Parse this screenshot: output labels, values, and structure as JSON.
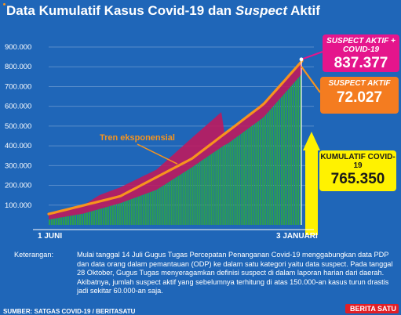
{
  "title": {
    "part1": "Data Kumulatif Kasus Covid-19 dan ",
    "italic": "Suspect",
    "part2": " Aktif"
  },
  "callouts": {
    "combined": {
      "label": "SUSPECT AKTIF + COVID-19",
      "value": "837.377"
    },
    "suspect": {
      "label": "SUSPECT AKTIF",
      "value": "72.027"
    },
    "cumulative": {
      "label": "KUMULATIF COVID-19",
      "value": "765.350"
    }
  },
  "notes": {
    "key": "Keterangan:",
    "text": "Mulai tanggal 14 Juli Gugus Tugas Percepatan Penanganan Covid-19 menggabungkan data PDP dan data orang dalam pemantauan (ODP) ke dalam satu kategori yaitu data suspect. Pada tanggal 28 Oktober, Gugus Tugas menyeragamkan definisi suspect di dalam laporan harian dari daerah. Akibatnya, jumlah suspect aktif yang sebelumnya terhitung di atas 150.000-an kasus turun drastis jadi sekitar 60.000-an saja."
  },
  "source": "SUMBER: SATGAS COVID-19 / BERITASATU",
  "brand": "BERITA SATU",
  "colors": {
    "background": "#1f66b8",
    "cumulative_bars": "#2e9e4f",
    "suspect_band": "#c2185b",
    "trend_line": "#f7941d",
    "arrow": "#fff200"
  },
  "chart_data": {
    "type": "bar",
    "x_start_label": "1 JUNI",
    "x_end_label": "3 JANUARI",
    "y_ticks": [
      "100.000",
      "200.000",
      "300.000",
      "400.000",
      "500.000",
      "600.000",
      "700.000",
      "800.000",
      "900.000"
    ],
    "ylim": [
      0,
      900000
    ],
    "grid": true,
    "trend_label": "Tren eksponensial",
    "series": [
      {
        "name": "KUMULATIF COVID-19",
        "dates": [
          "2020-06-01",
          "2020-07-01",
          "2020-08-01",
          "2020-09-01",
          "2020-10-01",
          "2020-10-28",
          "2020-11-01",
          "2020-12-01",
          "2021-01-03"
        ],
        "values": [
          26940,
          57770,
          109936,
          177571,
          291182,
          400483,
          412784,
          543975,
          765350
        ]
      },
      {
        "name": "SUSPECT AKTIF + COVID-19",
        "dates": [
          "2020-06-01",
          "2020-07-01",
          "2020-07-14",
          "2020-08-01",
          "2020-09-01",
          "2020-10-01",
          "2020-10-27",
          "2020-10-28",
          "2020-11-01",
          "2020-12-01",
          "2021-01-03"
        ],
        "values": [
          62000,
          100000,
          150000,
          190000,
          280000,
          440000,
          575000,
          460000,
          475000,
          620000,
          837377
        ]
      }
    ],
    "trend": {
      "dates": [
        "2020-06-01",
        "2020-08-01",
        "2020-10-01",
        "2020-12-01",
        "2021-01-03"
      ],
      "values": [
        55000,
        145000,
        335000,
        610000,
        830000
      ]
    }
  }
}
